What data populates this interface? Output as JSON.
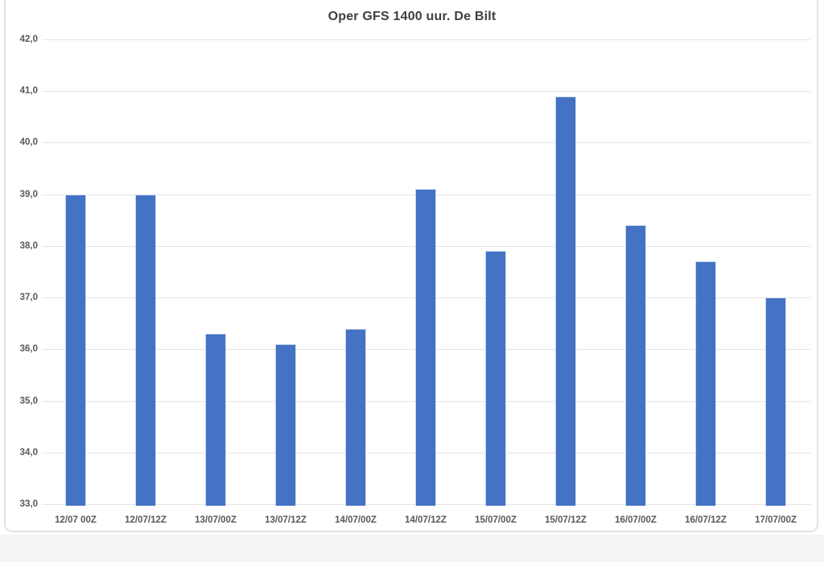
{
  "window": {
    "panel_background": "#ffffff",
    "panel_border_color": "#e2e2e2",
    "background_below_chart": "#f4f4f4"
  },
  "chart_data": {
    "type": "bar",
    "title": "Oper GFS 1400 uur. De Bilt",
    "categories": [
      "12/07 00Z",
      "12/07/12Z",
      "13/07/00Z",
      "13/07/12Z",
      "14/07/00Z",
      "14/07/12Z",
      "15/07/00Z",
      "15/07/12Z",
      "16/07/00Z",
      "16/07/12Z",
      "17/07/00Z"
    ],
    "values": [
      39.0,
      39.0,
      36.3,
      36.1,
      36.4,
      39.1,
      37.9,
      40.9,
      38.4,
      37.7,
      37.0
    ],
    "ylim": [
      33.0,
      42.0
    ],
    "ytick_step": 1.0,
    "yticks": [
      {
        "value": 33.0,
        "label": "33,0"
      },
      {
        "value": 34.0,
        "label": "34,0"
      },
      {
        "value": 35.0,
        "label": "35,0"
      },
      {
        "value": 36.0,
        "label": "36,0"
      },
      {
        "value": 37.0,
        "label": "37,0"
      },
      {
        "value": 38.0,
        "label": "38,0"
      },
      {
        "value": 39.0,
        "label": "39,0"
      },
      {
        "value": 40.0,
        "label": "40,0"
      },
      {
        "value": 41.0,
        "label": "41,0"
      },
      {
        "value": 42.0,
        "label": "42,0"
      }
    ],
    "xlabel": "",
    "ylabel": "",
    "grid": true,
    "legend": false,
    "decimal_separator": ",",
    "bar_color": "#4472C4",
    "bar_edge_color": "#ccd8f0",
    "gridline_color": "#e4e4e4",
    "axis_label_color": "#595959",
    "title_color": "#3f3f3f"
  }
}
